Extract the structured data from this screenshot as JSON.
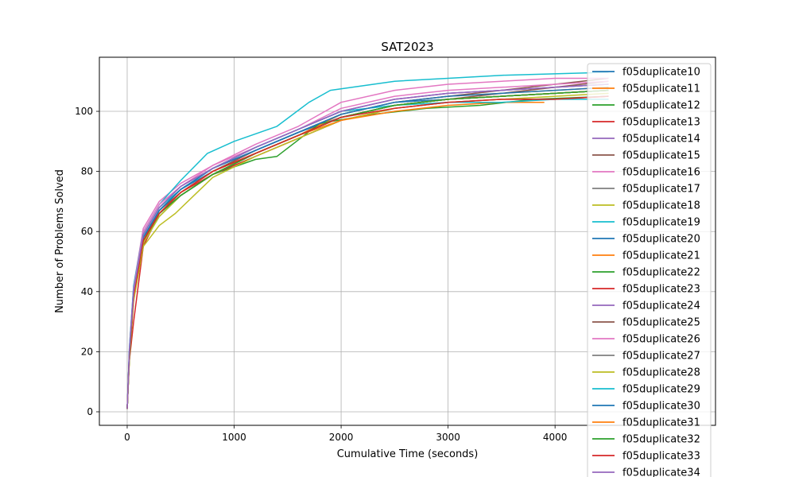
{
  "chart_data": {
    "type": "line",
    "title": "SAT2023",
    "xlabel": "Cumulative Time (seconds)",
    "ylabel": "Number of Problems Solved",
    "xlim": [
      -260,
      5500
    ],
    "ylim": [
      -4.5,
      118
    ],
    "xticks": [
      0,
      1000,
      2000,
      3000,
      4000
    ],
    "yticks": [
      0,
      20,
      40,
      60,
      80,
      100
    ],
    "grid": true,
    "legend_position": "upper-right",
    "series": [
      {
        "name": "f05duplicate10",
        "color": "#1f77b4",
        "x": [
          0,
          20,
          60,
          150,
          300,
          500,
          800,
          1200,
          1600,
          2000,
          2500,
          3000,
          3500,
          4000,
          4500
        ],
        "y": [
          1,
          20,
          40,
          58,
          67,
          74,
          80,
          87,
          93,
          98,
          102,
          104,
          105,
          106,
          107
        ]
      },
      {
        "name": "f05duplicate11",
        "color": "#ff7f0e",
        "x": [
          0,
          20,
          60,
          150,
          300,
          500,
          800,
          1200,
          1600,
          2000,
          2500,
          3000,
          3500,
          4000,
          4500
        ],
        "y": [
          1,
          19,
          39,
          57,
          66,
          73,
          80,
          86,
          92,
          99,
          103,
          105,
          106,
          107,
          108
        ]
      },
      {
        "name": "f05duplicate12",
        "color": "#2ca02c",
        "x": [
          0,
          20,
          60,
          150,
          300,
          500,
          800,
          1200,
          1400,
          1800,
          2300,
          2800,
          3300,
          3800,
          4500
        ],
        "y": [
          1,
          18,
          38,
          56,
          65,
          72,
          79,
          84,
          85,
          96,
          99,
          101,
          102,
          104,
          105
        ]
      },
      {
        "name": "f05duplicate13",
        "color": "#d62728",
        "x": [
          0,
          20,
          60,
          150,
          300,
          500,
          800,
          1200,
          1600,
          2000,
          2500,
          3000,
          3500,
          4000,
          4500
        ],
        "y": [
          1,
          17,
          30,
          55,
          66,
          72,
          79,
          85,
          91,
          97,
          101,
          103,
          104,
          104,
          105
        ]
      },
      {
        "name": "f05duplicate14",
        "color": "#9467bd",
        "x": [
          0,
          20,
          60,
          150,
          300,
          500,
          800,
          1200,
          1600,
          2000,
          2500,
          3000,
          3500,
          4000,
          4500
        ],
        "y": [
          1,
          20,
          41,
          59,
          68,
          75,
          81,
          88,
          94,
          100,
          104,
          106,
          107,
          108,
          109
        ]
      },
      {
        "name": "f05duplicate15",
        "color": "#8c564b",
        "x": [
          0,
          20,
          60,
          150,
          300,
          500,
          800,
          1200,
          1600,
          2000,
          2500,
          3000,
          3500,
          4000,
          4500
        ],
        "y": [
          1,
          19,
          39,
          57,
          67,
          73,
          80,
          87,
          93,
          99,
          103,
          105,
          107,
          109,
          111
        ]
      },
      {
        "name": "f05duplicate16",
        "color": "#e377c2",
        "x": [
          0,
          20,
          60,
          150,
          300,
          500,
          800,
          1200,
          1600,
          2000,
          2500,
          3000,
          3500,
          4000,
          4500
        ],
        "y": [
          1,
          21,
          42,
          61,
          70,
          76,
          82,
          89,
          95,
          103,
          107,
          109,
          110,
          111,
          111
        ]
      },
      {
        "name": "f05duplicate17",
        "color": "#7f7f7f",
        "x": [
          0,
          20,
          60,
          150,
          300,
          500,
          800,
          1200,
          1600,
          2000,
          2500,
          3000,
          3500,
          4000,
          4500
        ],
        "y": [
          1,
          18,
          38,
          56,
          66,
          72,
          79,
          86,
          92,
          98,
          102,
          104,
          105,
          106,
          107
        ]
      },
      {
        "name": "f05duplicate18",
        "color": "#bcbd22",
        "x": [
          0,
          20,
          60,
          150,
          300,
          450,
          800,
          1200,
          1600,
          2000,
          2500,
          3000,
          3500,
          4000,
          4500
        ],
        "y": [
          1,
          17,
          37,
          55,
          62,
          66,
          78,
          85,
          91,
          97,
          101,
          103,
          104,
          105,
          106
        ]
      },
      {
        "name": "f05duplicate19",
        "color": "#17becf",
        "x": [
          0,
          20,
          60,
          150,
          300,
          500,
          750,
          1000,
          1400,
          1700,
          1900,
          2500,
          3000,
          3500,
          4500
        ],
        "y": [
          1,
          21,
          42,
          60,
          69,
          77,
          86,
          90,
          95,
          103,
          107,
          110,
          111,
          112,
          113
        ]
      },
      {
        "name": "f05duplicate20",
        "color": "#1f77b4",
        "x": [
          0,
          20,
          60,
          150,
          300,
          500,
          800,
          1200,
          1600,
          2000,
          2500,
          3000,
          3500,
          4000,
          4500
        ],
        "y": [
          1,
          19,
          40,
          58,
          67,
          74,
          81,
          87,
          93,
          99,
          103,
          104,
          105,
          106,
          107
        ]
      },
      {
        "name": "f05duplicate21",
        "color": "#ff7f0e",
        "x": [
          0,
          20,
          60,
          150,
          300,
          500,
          800,
          1200,
          1600,
          2000,
          2500,
          3000,
          3500,
          3900
        ],
        "y": [
          1,
          18,
          38,
          57,
          66,
          73,
          80,
          86,
          92,
          97,
          100,
          102,
          103,
          103
        ]
      },
      {
        "name": "f05duplicate22",
        "color": "#2ca02c",
        "x": [
          0,
          20,
          60,
          150,
          300,
          500,
          800,
          1200,
          1600,
          2000,
          2500,
          3000,
          3500,
          4000,
          4500
        ],
        "y": [
          1,
          18,
          38,
          56,
          66,
          72,
          79,
          86,
          92,
          98,
          102,
          104,
          105,
          106,
          107
        ]
      },
      {
        "name": "f05duplicate23",
        "color": "#d62728",
        "x": [
          0,
          20,
          60,
          150,
          300,
          500,
          800,
          1200,
          1600,
          2000,
          2500,
          3000,
          3500,
          4000,
          4500
        ],
        "y": [
          1,
          19,
          39,
          57,
          66,
          73,
          79,
          86,
          92,
          98,
          102,
          104,
          105,
          106,
          107
        ]
      },
      {
        "name": "f05duplicate24",
        "color": "#9467bd",
        "x": [
          0,
          20,
          60,
          150,
          300,
          500,
          800,
          1200,
          1600,
          2000,
          2500,
          3000,
          3500,
          4000,
          4500
        ],
        "y": [
          1,
          20,
          40,
          59,
          68,
          74,
          81,
          88,
          94,
          100,
          104,
          106,
          107,
          108,
          109
        ]
      },
      {
        "name": "f05duplicate25",
        "color": "#8c564b",
        "x": [
          0,
          20,
          60,
          150,
          300,
          500,
          800,
          1200,
          1600,
          2000,
          2500,
          3000,
          3500,
          4000,
          4500
        ],
        "y": [
          1,
          19,
          39,
          57,
          66,
          73,
          80,
          86,
          92,
          98,
          102,
          104,
          106,
          108,
          110
        ]
      },
      {
        "name": "f05duplicate26",
        "color": "#e377c2",
        "x": [
          0,
          20,
          60,
          150,
          300,
          500,
          800,
          1200,
          1600,
          2000,
          2500,
          3000,
          3500,
          4000,
          4500
        ],
        "y": [
          1,
          20,
          41,
          60,
          69,
          75,
          82,
          88,
          94,
          101,
          105,
          107,
          108,
          109,
          110
        ]
      },
      {
        "name": "f05duplicate27",
        "color": "#7f7f7f",
        "x": [
          0,
          20,
          60,
          150,
          300,
          500,
          800,
          1200,
          1600,
          2000,
          2500,
          3000,
          3500,
          4000,
          4500
        ],
        "y": [
          1,
          19,
          39,
          57,
          66,
          73,
          80,
          86,
          92,
          98,
          102,
          104,
          105,
          106,
          107
        ]
      },
      {
        "name": "f05duplicate28",
        "color": "#bcbd22",
        "x": [
          0,
          20,
          60,
          150,
          300,
          500,
          800,
          1200,
          1600,
          2000,
          2500,
          3000,
          3500,
          4000,
          4500
        ],
        "y": [
          1,
          18,
          38,
          56,
          65,
          72,
          79,
          86,
          92,
          98,
          102,
          104,
          105,
          106,
          107
        ]
      },
      {
        "name": "f05duplicate29",
        "color": "#17becf",
        "x": [
          0,
          20,
          60,
          150,
          300,
          500,
          800,
          1200,
          1600,
          2000,
          2500,
          3000,
          3500,
          4000,
          4500
        ],
        "y": [
          1,
          20,
          40,
          59,
          68,
          74,
          81,
          88,
          94,
          100,
          102,
          103,
          103,
          104,
          104
        ]
      },
      {
        "name": "f05duplicate30",
        "color": "#1f77b4",
        "x": [
          0,
          20,
          60,
          150,
          300,
          500,
          800,
          1200,
          1600,
          2000,
          2500,
          3000,
          3500,
          4000,
          4500
        ],
        "y": [
          1,
          19,
          40,
          58,
          67,
          74,
          81,
          87,
          93,
          99,
          103,
          105,
          106,
          107,
          108
        ]
      },
      {
        "name": "f05duplicate31",
        "color": "#ff7f0e",
        "x": [
          0,
          20,
          60,
          150,
          300,
          500,
          800,
          1200,
          1600,
          2000,
          2500,
          3000,
          3500,
          4000,
          4500
        ],
        "y": [
          1,
          18,
          38,
          57,
          66,
          73,
          80,
          86,
          92,
          98,
          102,
          104,
          105,
          106,
          107
        ]
      },
      {
        "name": "f05duplicate32",
        "color": "#2ca02c",
        "x": [
          0,
          20,
          60,
          150,
          300,
          500,
          800,
          1200,
          1600,
          2000,
          2500,
          3000,
          3500,
          4000,
          4500
        ],
        "y": [
          1,
          18,
          39,
          57,
          66,
          72,
          79,
          86,
          92,
          98,
          102,
          104,
          105,
          106,
          107
        ]
      },
      {
        "name": "f05duplicate33",
        "color": "#d62728",
        "x": [
          0,
          20,
          60,
          150,
          300,
          500,
          800,
          1200,
          1600,
          2000,
          2500,
          3000,
          3500,
          4000,
          4500
        ],
        "y": [
          1,
          19,
          39,
          57,
          66,
          73,
          80,
          86,
          92,
          98,
          101,
          103,
          104,
          104,
          105
        ]
      },
      {
        "name": "f05duplicate34",
        "color": "#9467bd",
        "x": [
          0,
          20,
          60,
          150,
          300,
          500,
          800,
          1200,
          1600,
          2000,
          2500,
          3000,
          3500,
          4000,
          4500
        ],
        "y": [
          1,
          20,
          40,
          59,
          68,
          75,
          81,
          88,
          94,
          100,
          104,
          106,
          107,
          108,
          109
        ]
      }
    ]
  }
}
